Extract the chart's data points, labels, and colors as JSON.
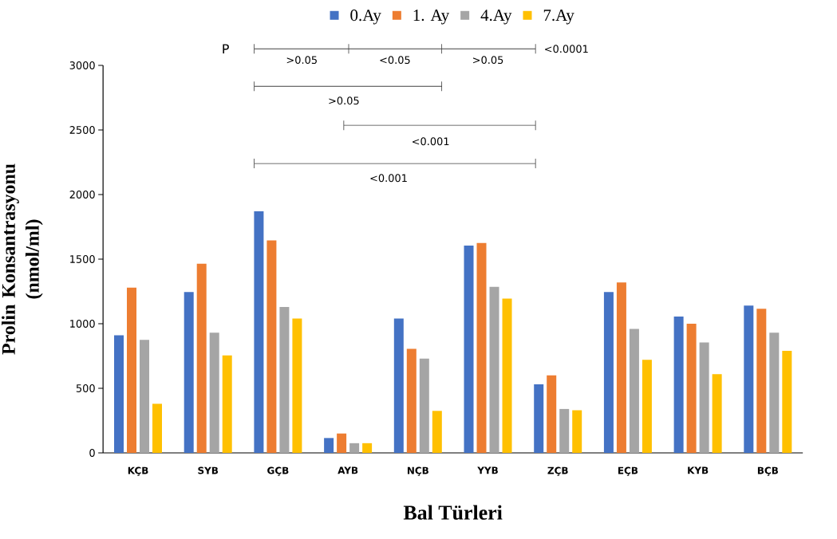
{
  "chart_data": {
    "type": "bar",
    "xlabel": "Bal Türleri",
    "ylabel": "Prolin Konsantrasyonu (nmol/ml)",
    "categories": [
      "KÇB",
      "SYB",
      "GÇB",
      "AYB",
      "NÇB",
      "YYB",
      "ZÇB",
      "EÇB",
      "KYB",
      "BÇB"
    ],
    "series": [
      {
        "name": "0.Ay",
        "color": "#4472c4",
        "values": [
          910,
          1245,
          1870,
          115,
          1040,
          1605,
          530,
          1245,
          1055,
          1140
        ]
      },
      {
        "name": "1. Ay",
        "color": "#ed7d31",
        "values": [
          1280,
          1465,
          1645,
          150,
          805,
          1625,
          600,
          1320,
          1000,
          1115
        ]
      },
      {
        "name": "4.Ay",
        "color": "#a5a5a5",
        "values": [
          875,
          930,
          1130,
          75,
          730,
          1285,
          340,
          960,
          855,
          930
        ]
      },
      {
        "name": "7.Ay",
        "color": "#ffc000",
        "values": [
          380,
          755,
          1040,
          75,
          325,
          1195,
          330,
          720,
          610,
          790
        ]
      }
    ],
    "ylim": [
      0,
      3000
    ],
    "yticks": [
      0,
      500,
      1000,
      1500,
      2000,
      2500,
      3000
    ],
    "legend": "top",
    "grid": false,
    "annotations": [
      "P",
      ">0.05",
      "<0.05",
      ">0.05",
      "<0.0001",
      ">0.05",
      "<0.001",
      "<0.001"
    ]
  }
}
